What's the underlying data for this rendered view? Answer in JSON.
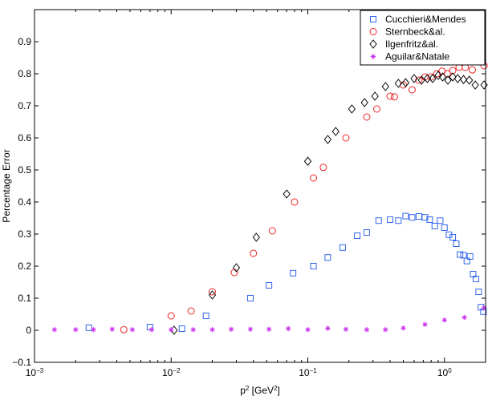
{
  "chart_data": {
    "type": "scatter",
    "title": "",
    "xlabel": "p",
    "xlabel_sup": "2",
    "xlabel_unit_open": " [GeV",
    "xlabel_unit_sup": "2",
    "xlabel_unit_close": "]",
    "ylabel": "Percentage Error",
    "xscale": "log",
    "xlim": [
      0.001,
      2
    ],
    "ylim": [
      -0.1,
      1.0
    ],
    "grid": false,
    "legend_position": "top-right",
    "x_ticks": [
      {
        "value": 0.001,
        "base": "10",
        "exp": "−3"
      },
      {
        "value": 0.01,
        "base": "10",
        "exp": "−2"
      },
      {
        "value": 0.1,
        "base": "10",
        "exp": "−1"
      },
      {
        "value": 1,
        "base": "10",
        "exp": "0"
      }
    ],
    "y_ticks": [
      {
        "value": -0.1,
        "label": "−0.1"
      },
      {
        "value": 0,
        "label": "0"
      },
      {
        "value": 0.1,
        "label": "0.1"
      },
      {
        "value": 0.2,
        "label": "0.2"
      },
      {
        "value": 0.3,
        "label": "0.3"
      },
      {
        "value": 0.4,
        "label": "0.4"
      },
      {
        "value": 0.5,
        "label": "0.5"
      },
      {
        "value": 0.6,
        "label": "0.6"
      },
      {
        "value": 0.7,
        "label": "0.7"
      },
      {
        "value": 0.8,
        "label": "0.8"
      },
      {
        "value": 0.9,
        "label": "0.9"
      }
    ],
    "series": [
      {
        "name": "Cucchieri&Mendes",
        "marker": "square",
        "color": "#3366ee",
        "points": [
          [
            0.0025,
            0.008
          ],
          [
            0.007,
            0.01
          ],
          [
            0.012,
            0.005
          ],
          [
            0.018,
            0.045
          ],
          [
            0.038,
            0.1
          ],
          [
            0.052,
            0.14
          ],
          [
            0.078,
            0.178
          ],
          [
            0.11,
            0.2
          ],
          [
            0.14,
            0.227
          ],
          [
            0.18,
            0.258
          ],
          [
            0.23,
            0.295
          ],
          [
            0.27,
            0.305
          ],
          [
            0.33,
            0.342
          ],
          [
            0.4,
            0.345
          ],
          [
            0.46,
            0.342
          ],
          [
            0.52,
            0.356
          ],
          [
            0.58,
            0.352
          ],
          [
            0.65,
            0.355
          ],
          [
            0.72,
            0.352
          ],
          [
            0.78,
            0.345
          ],
          [
            0.85,
            0.325
          ],
          [
            0.93,
            0.342
          ],
          [
            1.0,
            0.32
          ],
          [
            1.08,
            0.298
          ],
          [
            1.15,
            0.29
          ],
          [
            1.22,
            0.27
          ],
          [
            1.3,
            0.236
          ],
          [
            1.38,
            0.234
          ],
          [
            1.46,
            0.216
          ],
          [
            1.54,
            0.23
          ],
          [
            1.62,
            0.175
          ],
          [
            1.7,
            0.16
          ],
          [
            1.78,
            0.12
          ],
          [
            1.85,
            0.072
          ],
          [
            1.93,
            0.058
          ]
        ]
      },
      {
        "name": "Sternbeck&al.",
        "marker": "circle",
        "color": "#ee2222",
        "points": [
          [
            0.0045,
            0.002
          ],
          [
            0.01,
            0.045
          ],
          [
            0.014,
            0.06
          ],
          [
            0.02,
            0.12
          ],
          [
            0.029,
            0.18
          ],
          [
            0.04,
            0.24
          ],
          [
            0.055,
            0.31
          ],
          [
            0.08,
            0.4
          ],
          [
            0.11,
            0.475
          ],
          [
            0.13,
            0.508
          ],
          [
            0.19,
            0.6
          ],
          [
            0.27,
            0.665
          ],
          [
            0.32,
            0.69
          ],
          [
            0.4,
            0.73
          ],
          [
            0.43,
            0.728
          ],
          [
            0.5,
            0.765
          ],
          [
            0.58,
            0.75
          ],
          [
            0.65,
            0.78
          ],
          [
            0.72,
            0.79
          ],
          [
            0.8,
            0.79
          ],
          [
            0.88,
            0.8
          ],
          [
            0.96,
            0.808
          ],
          [
            1.05,
            0.8
          ],
          [
            1.15,
            0.81
          ],
          [
            1.28,
            0.82
          ],
          [
            1.42,
            0.82
          ],
          [
            1.6,
            0.812
          ],
          [
            1.95,
            0.825
          ]
        ]
      },
      {
        "name": "Ilgenfritz&al.",
        "marker": "diamond",
        "color": "#000000",
        "points": [
          [
            0.0105,
            0.0
          ],
          [
            0.02,
            0.11
          ],
          [
            0.03,
            0.195
          ],
          [
            0.042,
            0.29
          ],
          [
            0.07,
            0.425
          ],
          [
            0.1,
            0.527
          ],
          [
            0.14,
            0.595
          ],
          [
            0.16,
            0.62
          ],
          [
            0.21,
            0.69
          ],
          [
            0.26,
            0.71
          ],
          [
            0.31,
            0.73
          ],
          [
            0.37,
            0.76
          ],
          [
            0.46,
            0.77
          ],
          [
            0.52,
            0.772
          ],
          [
            0.6,
            0.785
          ],
          [
            0.68,
            0.78
          ],
          [
            0.75,
            0.785
          ],
          [
            0.82,
            0.785
          ],
          [
            0.9,
            0.795
          ],
          [
            0.97,
            0.79
          ],
          [
            1.06,
            0.78
          ],
          [
            1.15,
            0.79
          ],
          [
            1.25,
            0.785
          ],
          [
            1.38,
            0.782
          ],
          [
            1.52,
            0.78
          ],
          [
            1.68,
            0.765
          ],
          [
            1.95,
            0.765
          ]
        ]
      },
      {
        "name": "Aguilar&Natale",
        "marker": "asterisk",
        "color": "#cc33ee",
        "points": [
          [
            0.0014,
            0.002
          ],
          [
            0.002,
            0.002
          ],
          [
            0.0027,
            0.002
          ],
          [
            0.0037,
            0.003
          ],
          [
            0.0052,
            0.002
          ],
          [
            0.0072,
            0.002
          ],
          [
            0.01,
            0.002
          ],
          [
            0.0145,
            0.002
          ],
          [
            0.02,
            0.002
          ],
          [
            0.0275,
            0.003
          ],
          [
            0.038,
            0.003
          ],
          [
            0.052,
            0.003
          ],
          [
            0.072,
            0.005
          ],
          [
            0.1,
            0.002
          ],
          [
            0.14,
            0.006
          ],
          [
            0.19,
            0.003
          ],
          [
            0.27,
            0.002
          ],
          [
            0.37,
            0.002
          ],
          [
            0.5,
            0.007
          ],
          [
            0.72,
            0.018
          ],
          [
            1.0,
            0.032
          ],
          [
            1.4,
            0.04
          ],
          [
            1.95,
            0.07
          ]
        ]
      }
    ]
  }
}
